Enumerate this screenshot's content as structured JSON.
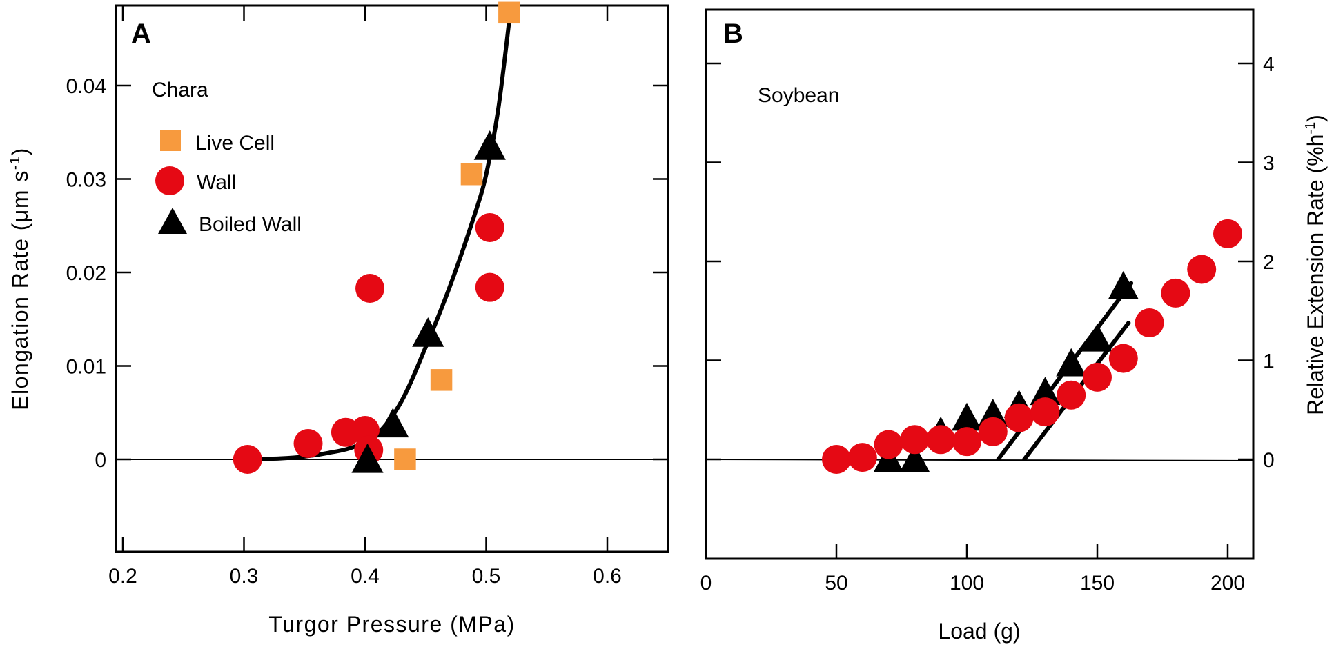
{
  "chart_data": [
    {
      "panel": "A",
      "type": "scatter",
      "annotation": "Chara",
      "xlabel": "Turgor Pressure (MPa)",
      "ylabel_main": "Elongation Rate (",
      "ylabel_unit": "μm s",
      "ylabel_sup": "-1",
      "ylabel_close": ")",
      "xlim": [
        0.2,
        0.65
      ],
      "ylim": [
        -0.01,
        0.049
      ],
      "xticks": [
        0.2,
        0.3,
        0.4,
        0.5,
        0.6
      ],
      "xtick_labels": [
        "0.2",
        "0.3",
        "0.4",
        "0.5",
        "0.6"
      ],
      "yticks": [
        0,
        0.01,
        0.02,
        0.03,
        0.04
      ],
      "ytick_labels": [
        "0",
        "0.01",
        "0.02",
        "0.03",
        "0.04"
      ],
      "series": [
        {
          "name": "Live Cell",
          "marker": "square",
          "color": "#F79A3E",
          "points": [
            [
              0.433,
              0.0
            ],
            [
              0.463,
              0.0085
            ],
            [
              0.488,
              0.0305
            ],
            [
              0.519,
              0.0478
            ]
          ]
        },
        {
          "name": "Wall",
          "marker": "circle",
          "color": "#E50914",
          "points": [
            [
              0.303,
              0.0
            ],
            [
              0.353,
              0.0017
            ],
            [
              0.384,
              0.0029
            ],
            [
              0.4,
              0.0031
            ],
            [
              0.403,
              0.001
            ],
            [
              0.404,
              0.0183
            ],
            [
              0.503,
              0.0248
            ],
            [
              0.503,
              0.0184
            ]
          ]
        },
        {
          "name": "Boiled Wall",
          "marker": "triangle",
          "color": "#000000",
          "points": [
            [
              0.402,
              0.0
            ],
            [
              0.423,
              0.0038
            ],
            [
              0.452,
              0.0135
            ],
            [
              0.503,
              0.0335
            ]
          ]
        }
      ],
      "fit_curve": {
        "color": "#000000",
        "points": [
          [
            0.305,
            0.0
          ],
          [
            0.33,
            0.0001
          ],
          [
            0.35,
            0.0003
          ],
          [
            0.37,
            0.0007
          ],
          [
            0.39,
            0.0013
          ],
          [
            0.41,
            0.0027
          ],
          [
            0.43,
            0.0062
          ],
          [
            0.45,
            0.012
          ],
          [
            0.47,
            0.0185
          ],
          [
            0.49,
            0.026
          ],
          [
            0.5,
            0.0305
          ],
          [
            0.51,
            0.0375
          ],
          [
            0.52,
            0.048
          ]
        ]
      },
      "zero_line": 0
    },
    {
      "panel": "B",
      "type": "scatter",
      "annotation": "Soybean",
      "xlabel": "Load (g)",
      "ylabel_main": "Relative Extension Rate (%h",
      "ylabel_sup": "-1",
      "ylabel_close": ")",
      "xlim": [
        0,
        210
      ],
      "ylim": [
        -1,
        4.5
      ],
      "xticks": [
        0,
        50,
        100,
        150,
        200
      ],
      "xtick_labels": [
        "0",
        "50",
        "100",
        "150",
        "200"
      ],
      "yticks": [
        0,
        1,
        2,
        3,
        4
      ],
      "ytick_labels": [
        "0",
        "1",
        "2",
        "3",
        "4"
      ],
      "series": [
        {
          "name": "Wall",
          "marker": "circle",
          "color": "#E50914",
          "points": [
            [
              50,
              0.0
            ],
            [
              60,
              0.02
            ],
            [
              70,
              0.15
            ],
            [
              80,
              0.2
            ],
            [
              90,
              0.2
            ],
            [
              100,
              0.18
            ],
            [
              110,
              0.28
            ],
            [
              120,
              0.42
            ],
            [
              130,
              0.48
            ],
            [
              140,
              0.65
            ],
            [
              150,
              0.83
            ],
            [
              160,
              1.02
            ],
            [
              170,
              1.38
            ],
            [
              180,
              1.68
            ],
            [
              190,
              1.92
            ],
            [
              200,
              2.28
            ]
          ]
        },
        {
          "name": "Boiled Wall",
          "marker": "triangle",
          "color": "#000000",
          "points": [
            [
              70,
              0.0
            ],
            [
              80,
              0.0
            ],
            [
              90,
              0.28
            ],
            [
              100,
              0.42
            ],
            [
              110,
              0.46
            ],
            [
              120,
              0.55
            ],
            [
              130,
              0.68
            ],
            [
              140,
              0.97
            ],
            [
              150,
              1.22
            ],
            [
              160,
              1.75
            ]
          ]
        }
      ],
      "fit_lines": [
        {
          "color": "#000000",
          "points": [
            [
              112,
              0.0
            ],
            [
              163,
              1.78
            ]
          ]
        },
        {
          "color": "#000000",
          "points": [
            [
              122,
              0.0
            ],
            [
              162,
              1.38
            ]
          ]
        }
      ],
      "zero_line": 0
    }
  ]
}
